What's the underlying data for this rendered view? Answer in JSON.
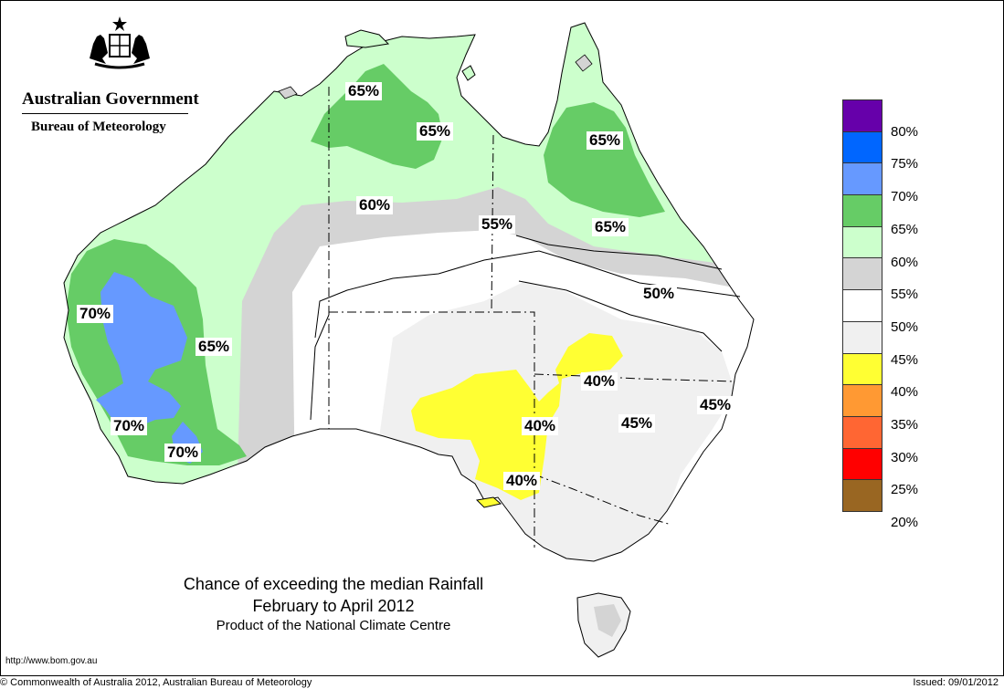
{
  "header": {
    "government": "Australian Government",
    "agency": "Bureau of Meteorology"
  },
  "map": {
    "title": "Chance of exceeding the median Rainfall",
    "period": "February to April 2012",
    "product": "Product of the National Climate Centre",
    "contour_labels": [
      "65%",
      "65%",
      "65%",
      "65%",
      "60%",
      "55%",
      "50%",
      "70%",
      "65%",
      "70%",
      "70%",
      "40%",
      "40%",
      "40%",
      "45%",
      "45%"
    ]
  },
  "legend": {
    "labels": [
      "80%",
      "75%",
      "70%",
      "65%",
      "60%",
      "55%",
      "50%",
      "45%",
      "40%",
      "35%",
      "30%",
      "25%",
      "20%"
    ],
    "colors": [
      "#6600aa",
      "#0066ff",
      "#6699ff",
      "#66cc66",
      "#ccffcc",
      "#d4d4d4",
      "#ffffff",
      "#f0f0f0",
      "#ffff33",
      "#ff9933",
      "#ff6633",
      "#ff0000",
      "#996622"
    ]
  },
  "footer": {
    "url": "http://www.bom.gov.au",
    "copyright": "© Commonwealth of Australia 2012, Australian Bureau of Meteorology",
    "issued": "Issued: 09/01/2012"
  }
}
